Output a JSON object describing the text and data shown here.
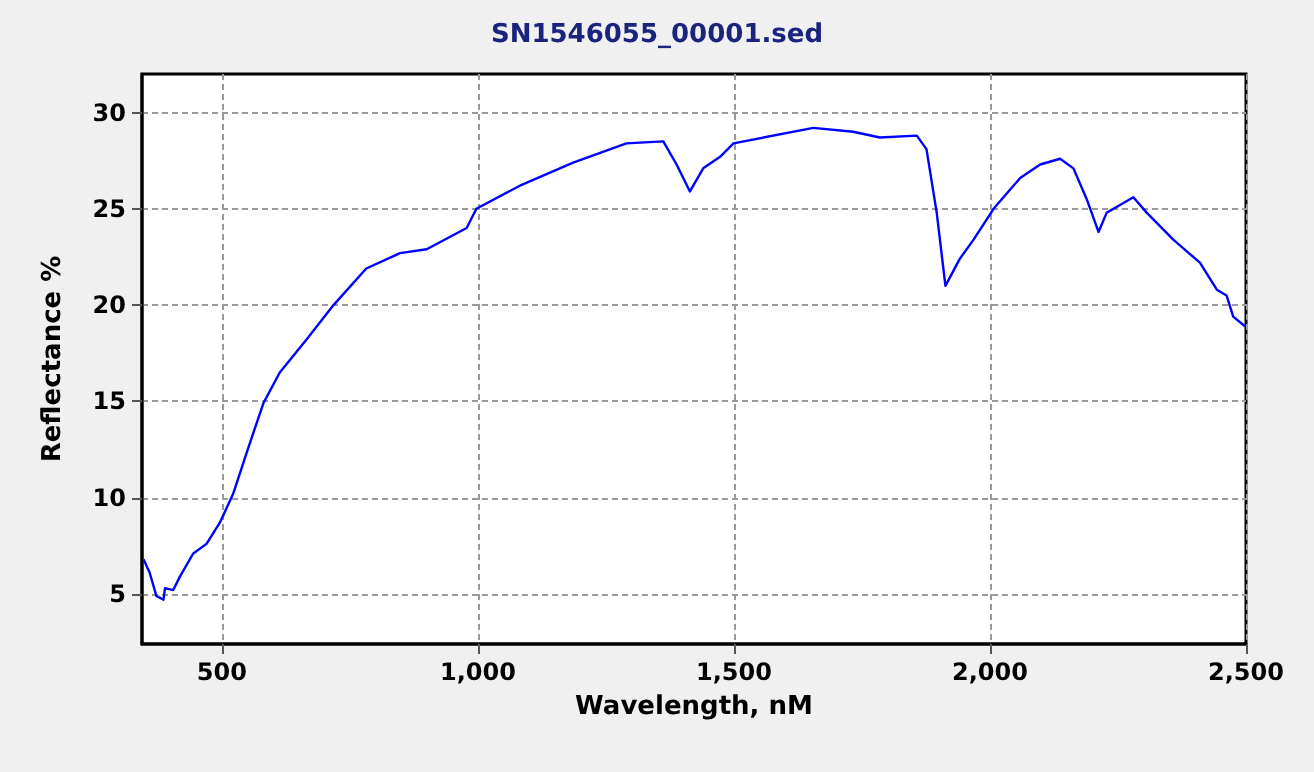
{
  "chart_data": {
    "type": "line",
    "title": "SN1546055_00001.sed",
    "xlabel": "Wavelength, nM",
    "ylabel": "Reflectance %",
    "xlim": [
      344,
      2500
    ],
    "ylim": [
      2.4,
      32
    ],
    "xticks": [
      {
        "value": 500,
        "label": "500"
      },
      {
        "value": 1000,
        "label": "1,000"
      },
      {
        "value": 1500,
        "label": "1,500"
      },
      {
        "value": 2000,
        "label": "2,000"
      },
      {
        "value": 2500,
        "label": "2,500"
      }
    ],
    "yticks": [
      5,
      10,
      15,
      20,
      25,
      30
    ],
    "grid": true,
    "marker": "none",
    "line_style": "solid",
    "series": [
      {
        "color": "#0000ff",
        "x": [
          347,
          359,
          372,
          386,
          389,
          405,
          418,
          444,
          470,
          496,
          522,
          548,
          581,
          613,
          665,
          718,
          782,
          848,
          900,
          978,
          997,
          1082,
          1186,
          1290,
          1362,
          1388,
          1414,
          1440,
          1473,
          1499,
          1655,
          1733,
          1785,
          1857,
          1876,
          1896,
          1913,
          1941,
          1968,
          2007,
          2059,
          2098,
          2137,
          2163,
          2189,
          2212,
          2228,
          2254,
          2280,
          2306,
          2358,
          2410,
          2443,
          2462,
          2475,
          2498
        ],
        "values": [
          6.8,
          6.1,
          4.9,
          4.7,
          5.3,
          5.2,
          5.9,
          7.1,
          7.6,
          8.7,
          10.2,
          12.3,
          14.9,
          16.5,
          18.2,
          20.0,
          21.9,
          22.7,
          22.9,
          24.0,
          25.0,
          26.2,
          27.4,
          28.4,
          28.5,
          27.3,
          25.9,
          27.1,
          27.7,
          28.4,
          29.2,
          29.0,
          28.7,
          28.8,
          28.1,
          24.8,
          21.0,
          22.4,
          23.4,
          25.0,
          26.6,
          27.3,
          27.6,
          27.1,
          25.5,
          23.8,
          24.8,
          25.2,
          25.6,
          24.8,
          23.4,
          22.2,
          20.8,
          20.5,
          19.4,
          18.9
        ]
      }
    ]
  }
}
